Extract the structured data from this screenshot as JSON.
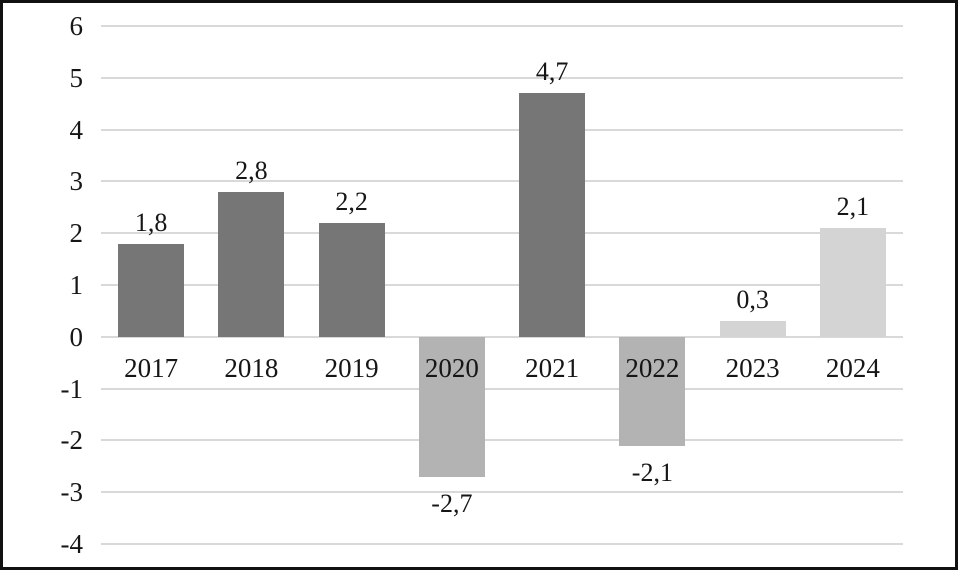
{
  "chart_data": {
    "type": "bar",
    "title": "",
    "xlabel": "",
    "ylabel": "",
    "categories": [
      "2017",
      "2018",
      "2019",
      "2020",
      "2021",
      "2022",
      "2023",
      "2024"
    ],
    "values": [
      1.8,
      2.8,
      2.2,
      -2.7,
      4.7,
      -2.1,
      0.3,
      2.1
    ],
    "value_labels": [
      "1,8",
      "2,8",
      "2,2",
      "-2,7",
      "4,7",
      "-2,1",
      "0,3",
      "2,1"
    ],
    "bar_color_groups": [
      "dark",
      "dark",
      "dark",
      "medium",
      "dark",
      "medium",
      "light",
      "light"
    ],
    "palette": {
      "dark": "#767676",
      "medium": "#b3b3b3",
      "light": "#d4d4d4"
    },
    "gridline_color": "#d9d9d9",
    "text_color": "#161616",
    "frame_color": "#111111",
    "y_ticks": [
      "6",
      "5",
      "4",
      "3",
      "2",
      "1",
      "0",
      "-1",
      "-2",
      "-3",
      "-4"
    ],
    "ylim": [
      -4,
      6
    ],
    "grid": true,
    "legend": false,
    "decimal_separator": ","
  }
}
